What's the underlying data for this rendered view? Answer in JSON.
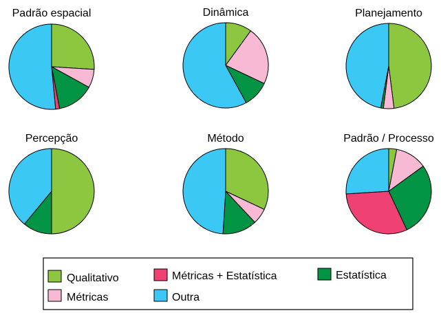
{
  "chart_data": [
    {
      "type": "pie",
      "title": "Padrão espacial",
      "categories": [
        "Qualitativo",
        "Métricas",
        "Estatística",
        "Métricas + Estatística",
        "Outra"
      ],
      "values": [
        26,
        7,
        14,
        1.5,
        51.5
      ]
    },
    {
      "type": "pie",
      "title": "Dinâmica",
      "categories": [
        "Qualitativo",
        "Métricas",
        "Estatística",
        "Outra"
      ],
      "values": [
        10,
        22,
        10,
        58
      ]
    },
    {
      "type": "pie",
      "title": "Planejamento",
      "categories": [
        "Qualitativo",
        "Métricas",
        "Estatística",
        "Outra"
      ],
      "values": [
        48,
        4,
        1,
        47
      ]
    },
    {
      "type": "pie",
      "title": "Percepção",
      "categories": [
        "Qualitativo",
        "Estatística",
        "Outra"
      ],
      "values": [
        50,
        11,
        39
      ]
    },
    {
      "type": "pie",
      "title": "Método",
      "categories": [
        "Qualitativo",
        "Métricas",
        "Estatística",
        "Outra"
      ],
      "values": [
        32,
        6,
        13,
        49
      ]
    },
    {
      "type": "pie",
      "title": "Padrão / Processo",
      "categories": [
        "Qualitativo",
        "Métricas",
        "Estatística",
        "Métricas + Estatística",
        "Outra"
      ],
      "values": [
        3,
        12,
        28,
        31,
        26
      ]
    }
  ],
  "legend": {
    "items": [
      {
        "label": "Qualitativo",
        "color": "#8dc63f"
      },
      {
        "label": "Métricas + Estatística",
        "color": "#ef4173"
      },
      {
        "label": "Estatística",
        "color": "#009444"
      },
      {
        "label": "Métricas",
        "color": "#f7b9d3"
      },
      {
        "label": "Outra",
        "color": "#3cc8f4"
      }
    ]
  },
  "colors": {
    "Qualitativo": "#8dc63f",
    "Métricas": "#f7b9d3",
    "Estatística": "#009444",
    "Métricas + Estatística": "#ef4173",
    "Outra": "#3cc8f4"
  }
}
